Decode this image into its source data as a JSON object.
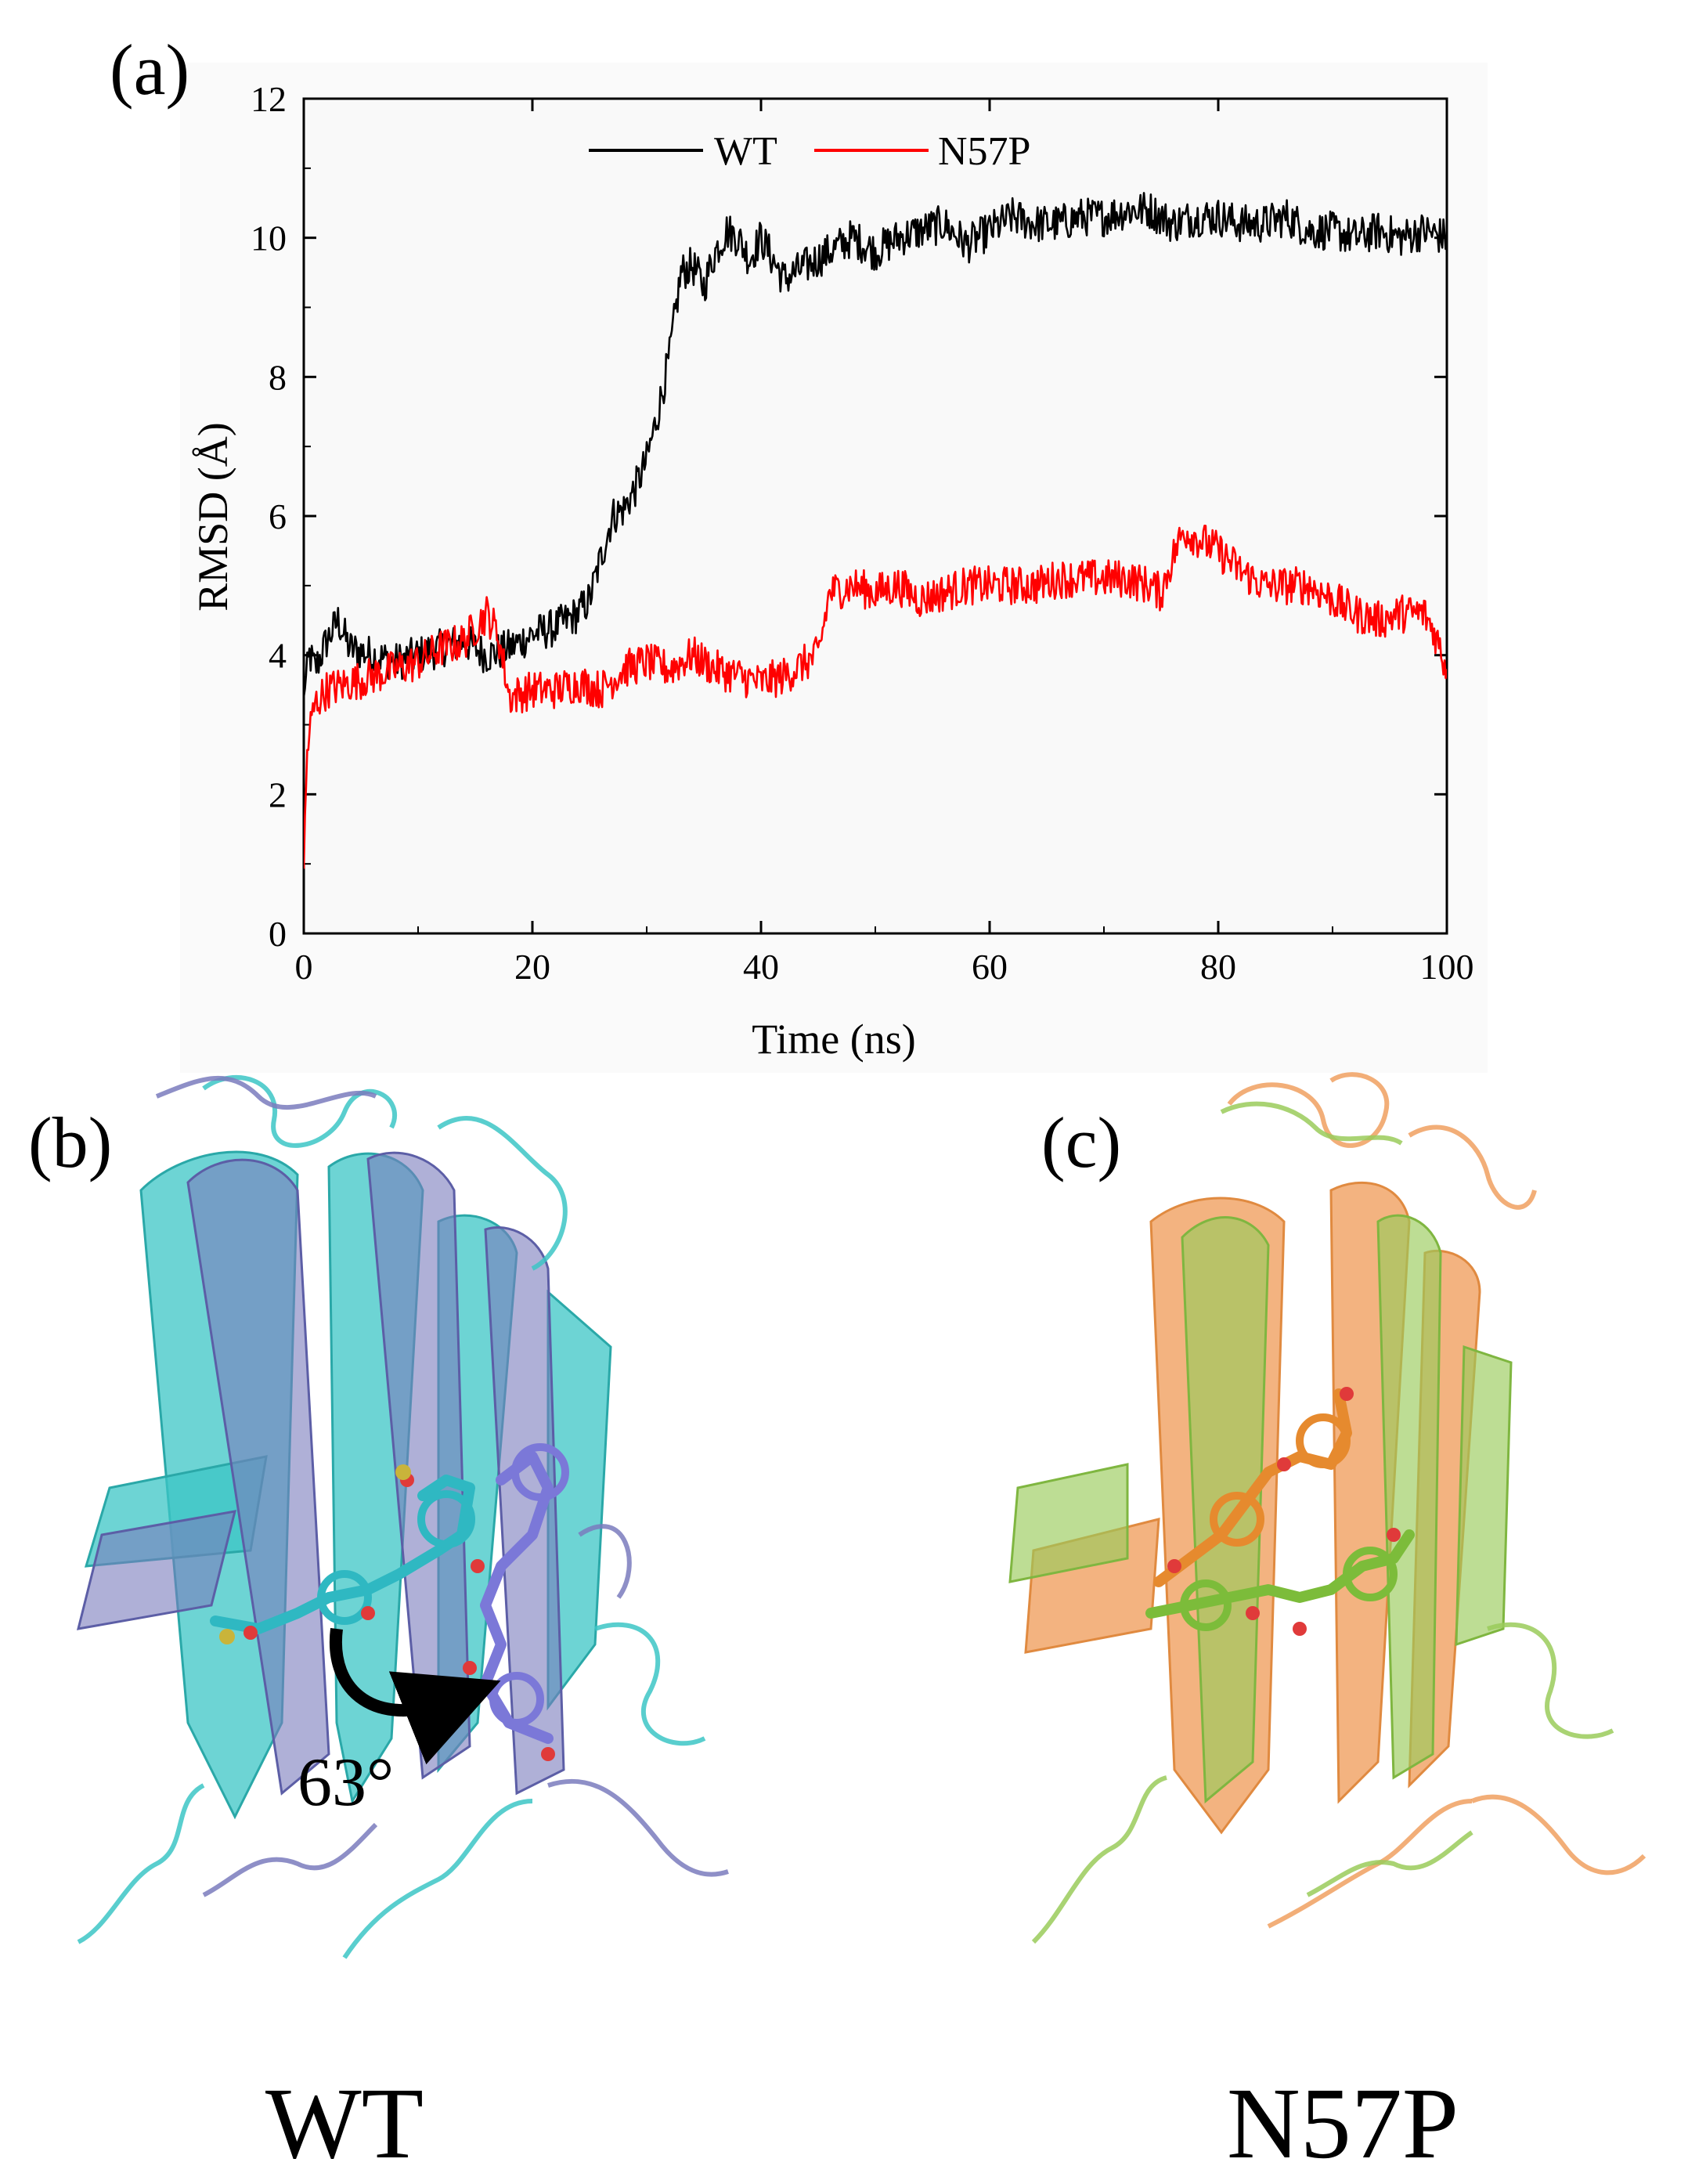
{
  "panels": {
    "a_label": "(a)",
    "b_label": "(b)",
    "c_label": "(c)"
  },
  "structures": {
    "b_caption": "WT",
    "c_caption": "N57P",
    "rotation_angle": "63°",
    "b_colors": {
      "structure_1": "#3cc6c6",
      "structure_2": "#7a7bbd",
      "ligand_1": "#2fb8c2",
      "ligand_2": "#7b78d8"
    },
    "c_colors": {
      "structure_1": "#f0a060",
      "structure_2": "#9acb5a",
      "ligand_1": "#e68a2e",
      "ligand_2": "#7cbc3a"
    }
  },
  "chart_data": {
    "type": "line",
    "title": "",
    "xlabel": "Time (ns)",
    "ylabel": "RMSD (Å)",
    "xlim": [
      0,
      100
    ],
    "ylim": [
      0,
      12
    ],
    "xticks": [
      0,
      20,
      40,
      60,
      80,
      100
    ],
    "yticks": [
      0,
      2,
      4,
      6,
      8,
      10,
      12
    ],
    "legend_position": "top",
    "grid": false,
    "series": [
      {
        "name": "WT",
        "color": "#000000",
        "x": [
          0,
          0.5,
          1,
          2,
          3,
          4,
          6,
          8,
          10,
          12,
          14,
          16,
          18,
          20,
          22,
          24,
          25,
          26,
          27,
          28,
          29,
          30,
          31,
          32,
          33,
          34,
          35,
          36,
          37,
          38,
          39,
          40,
          42,
          44,
          46,
          48,
          50,
          52,
          54,
          56,
          58,
          60,
          62,
          64,
          66,
          68,
          70,
          72,
          74,
          76,
          78,
          80,
          82,
          84,
          86,
          88,
          90,
          92,
          94,
          96,
          98,
          100
        ],
        "y": [
          3.4,
          4.0,
          3.8,
          4.2,
          4.5,
          4.1,
          4.0,
          3.9,
          4.0,
          4.1,
          4.2,
          4.0,
          4.1,
          4.3,
          4.4,
          4.6,
          4.8,
          5.4,
          6.0,
          6.1,
          6.4,
          6.8,
          7.5,
          8.3,
          9.5,
          9.6,
          9.3,
          9.8,
          10.1,
          10.0,
          9.7,
          10.0,
          9.4,
          9.6,
          9.8,
          10.0,
          9.8,
          10.0,
          10.1,
          10.2,
          9.9,
          10.1,
          10.3,
          10.2,
          10.2,
          10.3,
          10.3,
          10.4,
          10.4,
          10.2,
          10.3,
          10.3,
          10.2,
          10.2,
          10.3,
          10.1,
          10.1,
          10.0,
          10.1,
          10.0,
          10.1,
          10.0
        ]
      },
      {
        "name": "N57P",
        "color": "#ff0000",
        "x": [
          0,
          0.3,
          0.6,
          1,
          2,
          4,
          6,
          8,
          10,
          12,
          14,
          16,
          17,
          18,
          20,
          22,
          24,
          26,
          28,
          30,
          32,
          34,
          36,
          38,
          40,
          42,
          44,
          45,
          46,
          48,
          50,
          52,
          54,
          56,
          58,
          60,
          62,
          64,
          66,
          68,
          70,
          72,
          74,
          75,
          76,
          77,
          78,
          80,
          82,
          84,
          86,
          88,
          90,
          92,
          94,
          96,
          98,
          99,
          100
        ],
        "y": [
          1.0,
          2.6,
          3.0,
          3.3,
          3.5,
          3.6,
          3.7,
          3.8,
          3.9,
          4.1,
          4.2,
          4.6,
          4.3,
          3.4,
          3.5,
          3.5,
          3.6,
          3.5,
          3.8,
          3.9,
          3.8,
          4.0,
          3.8,
          3.7,
          3.6,
          3.7,
          3.9,
          4.0,
          4.9,
          5.0,
          4.9,
          5.0,
          4.8,
          4.9,
          5.0,
          5.0,
          5.0,
          5.0,
          5.1,
          5.1,
          5.1,
          5.1,
          5.0,
          4.9,
          5.4,
          5.8,
          5.7,
          5.5,
          5.2,
          5.0,
          5.0,
          5.0,
          4.8,
          4.6,
          4.5,
          4.6,
          4.6,
          4.3,
          3.8
        ]
      }
    ]
  }
}
